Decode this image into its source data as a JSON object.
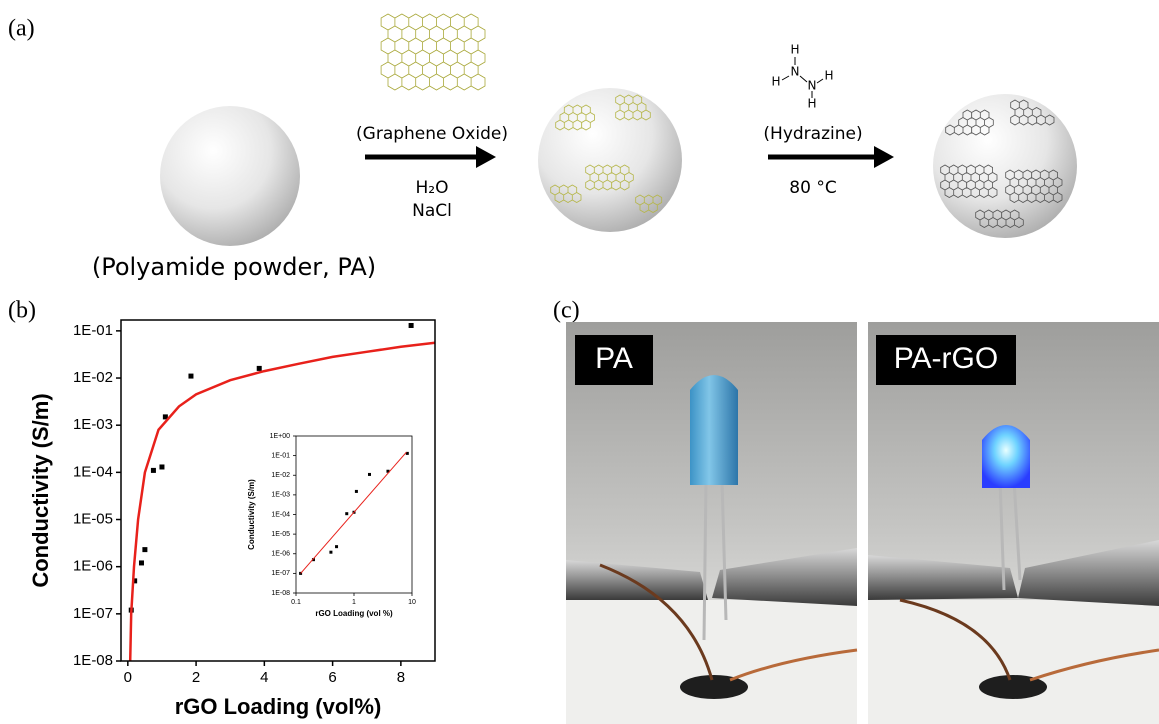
{
  "panels": {
    "a": "(a)",
    "b": "(b)",
    "c": "(c)"
  },
  "scheme": {
    "start": "(Polyamide powder, PA)",
    "reagent1": "(Graphene Oxide)",
    "conditions1": [
      "H₂O",
      "NaCl"
    ],
    "reagent2": "(Hydrazine)",
    "hydrazine_atoms": [
      "H",
      "H",
      "N",
      "N",
      "H",
      "H"
    ],
    "conditions2": "80 °C"
  },
  "photos": {
    "left": "PA",
    "right": "PA-rGO"
  },
  "chart_data": [
    {
      "type": "scatter",
      "ylabel": "Conductivity (S/m)",
      "xlabel": "rGO Loading (vol%)",
      "ylog": true,
      "xlim": [
        -0.2,
        9
      ],
      "ylim": [
        1e-08,
        0.17
      ],
      "xticks": [
        0,
        2,
        4,
        6,
        8
      ],
      "yticks": [
        {
          "value": 1e-08,
          "label": "1E-08"
        },
        {
          "value": 1e-07,
          "label": "1E-07"
        },
        {
          "value": 1e-06,
          "label": "1E-06"
        },
        {
          "value": 1e-05,
          "label": "1E-05"
        },
        {
          "value": 0.0001,
          "label": "1E-04"
        },
        {
          "value": 0.001,
          "label": "1E-03"
        },
        {
          "value": 0.01,
          "label": "1E-02"
        },
        {
          "value": 0.1,
          "label": "1E-01"
        }
      ],
      "series": [
        {
          "color": "#000000",
          "x": [
            0.1,
            0.2,
            0.4,
            0.5,
            0.75,
            1.0,
            1.1,
            1.85,
            3.85,
            8.3
          ],
          "values": [
            1.2e-07,
            5e-07,
            1.2e-06,
            2.3e-06,
            0.00011,
            0.00013,
            0.0015,
            0.011,
            0.016,
            0.13
          ]
        },
        {
          "color": "#e8211b",
          "line": true,
          "x": [
            0.07,
            0.1,
            0.18,
            0.3,
            0.5,
            0.9,
            1.5,
            2,
            3,
            4,
            5,
            6,
            7,
            8,
            9
          ],
          "values": [
            1e-08,
            1e-07,
            1e-06,
            1e-05,
            0.0001,
            0.0008,
            0.0025,
            0.0045,
            0.009,
            0.014,
            0.02,
            0.028,
            0.036,
            0.046,
            0.056
          ]
        }
      ]
    },
    {
      "type": "scatter",
      "ylabel": "Conductivity (S/m)",
      "xlabel": "rGO Loading (vol %)",
      "xlog": true,
      "ylog": true,
      "xlim": [
        0.1,
        10
      ],
      "ylim": [
        1e-08,
        1
      ],
      "xticks": [
        0.1,
        1,
        10
      ],
      "yticks": [
        {
          "value": 1e-08,
          "label": "1E-08"
        },
        {
          "value": 1e-07,
          "label": "1E-07"
        },
        {
          "value": 1e-06,
          "label": "1E-06"
        },
        {
          "value": 1e-05,
          "label": "1E-05"
        },
        {
          "value": 0.0001,
          "label": "1E-04"
        },
        {
          "value": 0.001,
          "label": "1E-03"
        },
        {
          "value": 0.01,
          "label": "1E-02"
        },
        {
          "value": 0.1,
          "label": "1E-01"
        },
        {
          "value": 1,
          "label": "1E+00"
        }
      ],
      "series": [
        {
          "color": "#000000",
          "x": [
            0.12,
            0.2,
            0.4,
            0.5,
            0.75,
            1.0,
            1.1,
            1.85,
            3.85,
            8.3
          ],
          "values": [
            1e-07,
            5e-07,
            1.2e-06,
            2.3e-06,
            0.00011,
            0.00013,
            0.0015,
            0.011,
            0.016,
            0.13
          ]
        },
        {
          "color": "#e8211b",
          "line": true,
          "x": [
            0.12,
            8
          ],
          "values": [
            1e-07,
            0.15
          ]
        }
      ]
    }
  ]
}
